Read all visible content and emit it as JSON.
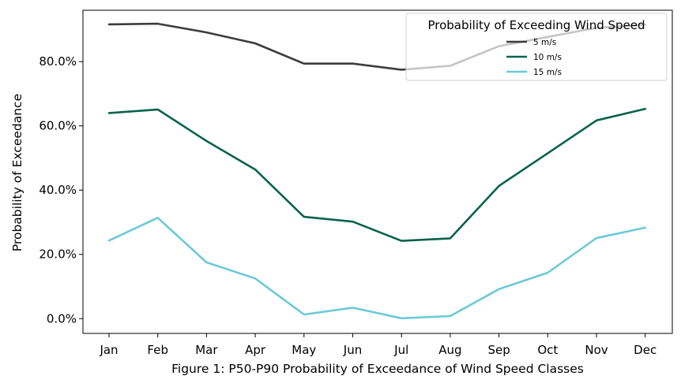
{
  "chart_data": {
    "type": "line",
    "title": "",
    "xlabel": "Figure 1: P50-P90 Probability of Exceedance of Wind Speed Classes",
    "ylabel": "Probability of Exceedance",
    "categories": [
      "Jan",
      "Feb",
      "Mar",
      "Apr",
      "May",
      "Jun",
      "Jul",
      "Aug",
      "Sep",
      "Oct",
      "Nov",
      "Dec"
    ],
    "ylim": [
      -0.046,
      0.96
    ],
    "yticks": [
      0.0,
      0.2,
      0.4,
      0.6,
      0.8
    ],
    "ytick_labels": [
      "0.0%",
      "20.0%",
      "40.0%",
      "60.0%",
      "80.0%"
    ],
    "grid": false,
    "legend": {
      "title": "Probability of Exceeding Wind Speed",
      "placement": "top-right"
    },
    "series": [
      {
        "name": "5 m/s",
        "color": "#3d3d3d",
        "values": [
          0.916,
          0.918,
          0.891,
          0.857,
          0.794,
          0.794,
          0.775,
          0.787,
          0.848,
          0.877,
          0.905,
          0.915
        ]
      },
      {
        "name": "10 m/s",
        "color": "#08634b",
        "values": [
          0.64,
          0.651,
          0.553,
          0.464,
          0.317,
          0.302,
          0.242,
          0.25,
          0.413,
          0.515,
          0.617,
          0.653
        ]
      },
      {
        "name": "15 m/s",
        "color": "#6cc9d6",
        "values": [
          0.243,
          0.314,
          0.175,
          0.125,
          0.013,
          0.034,
          0.001,
          0.008,
          0.092,
          0.143,
          0.251,
          0.283
        ]
      }
    ]
  }
}
